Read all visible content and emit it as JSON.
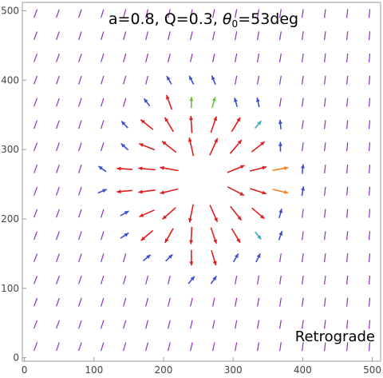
{
  "chart_data": {
    "type": "vector_field",
    "title_parts": {
      "prefix": "a=0.8, Q=0.3, ",
      "theta": "θ",
      "theta_sub": "0",
      "suffix": "=53deg"
    },
    "annotation": "Retrograde",
    "xlabel": "",
    "ylabel": "",
    "xlim": [
      -3,
      512
    ],
    "ylim": [
      -5,
      512
    ],
    "x_ticks": [
      0,
      100,
      200,
      300,
      400,
      500
    ],
    "y_ticks": [
      0,
      100,
      200,
      300,
      400,
      500
    ],
    "grid": false,
    "frame": true,
    "field": {
      "shadow_center": [
        255,
        258
      ],
      "shadow_radius": 40,
      "sample_spacing": 32,
      "sample_start": 16,
      "colors": {
        "far": "#8b2fc9",
        "mid_blue": "#3a4fd0",
        "cyan": "#3aa8c8",
        "green": "#6cbf3a",
        "orange": "#f08020",
        "near": "#e01d1d"
      }
    },
    "colors": {
      "frame": "#999999",
      "text": "#000000"
    }
  }
}
